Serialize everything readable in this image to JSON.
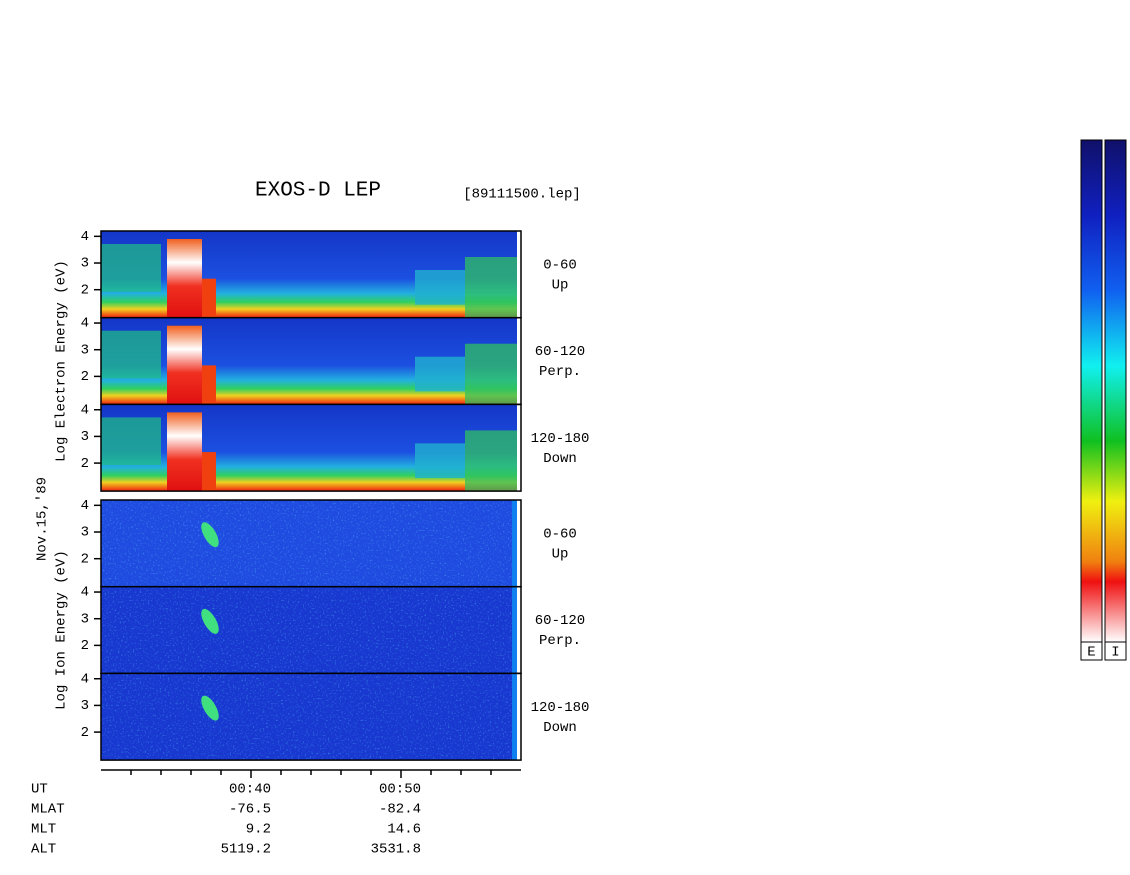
{
  "chart_data": {
    "type": "spectrogram",
    "title": "EXOS-D LEP",
    "subtitle": "[89111500.lep]",
    "date": "Nov.15,'89",
    "groups": [
      {
        "ylabel": "Log Electron Energy (eV)",
        "panels": [
          {
            "label": "0-60",
            "sublabel": "Up"
          },
          {
            "label": "60-120",
            "sublabel": "Perp."
          },
          {
            "label": "120-180",
            "sublabel": "Down"
          }
        ]
      },
      {
        "ylabel": "Log Ion Energy (eV)",
        "panels": [
          {
            "label": "0-60",
            "sublabel": "Up"
          },
          {
            "label": "60-120",
            "sublabel": "Perp."
          },
          {
            "label": "120-180",
            "sublabel": "Down"
          }
        ]
      }
    ],
    "ylim": [
      0.95,
      4.2
    ],
    "yticks": [
      2,
      3,
      4
    ],
    "xlabel": "UT",
    "xlim": [
      30,
      58
    ],
    "xticks": [
      {
        "value": 40,
        "label": "00:40"
      },
      {
        "value": 50,
        "label": "00:50"
      }
    ],
    "minor_xticks": [
      32,
      34,
      36,
      38,
      42,
      44,
      46,
      48,
      52,
      54,
      56
    ],
    "orbit": [
      {
        "name": "MLAT",
        "values": [
          -76.5,
          -82.4
        ]
      },
      {
        "name": "MLT",
        "values": [
          9.2,
          14.6
        ]
      },
      {
        "name": "ALT",
        "values": [
          5119.2,
          3531.8
        ]
      }
    ],
    "colorbars": [
      "E",
      "I"
    ]
  }
}
